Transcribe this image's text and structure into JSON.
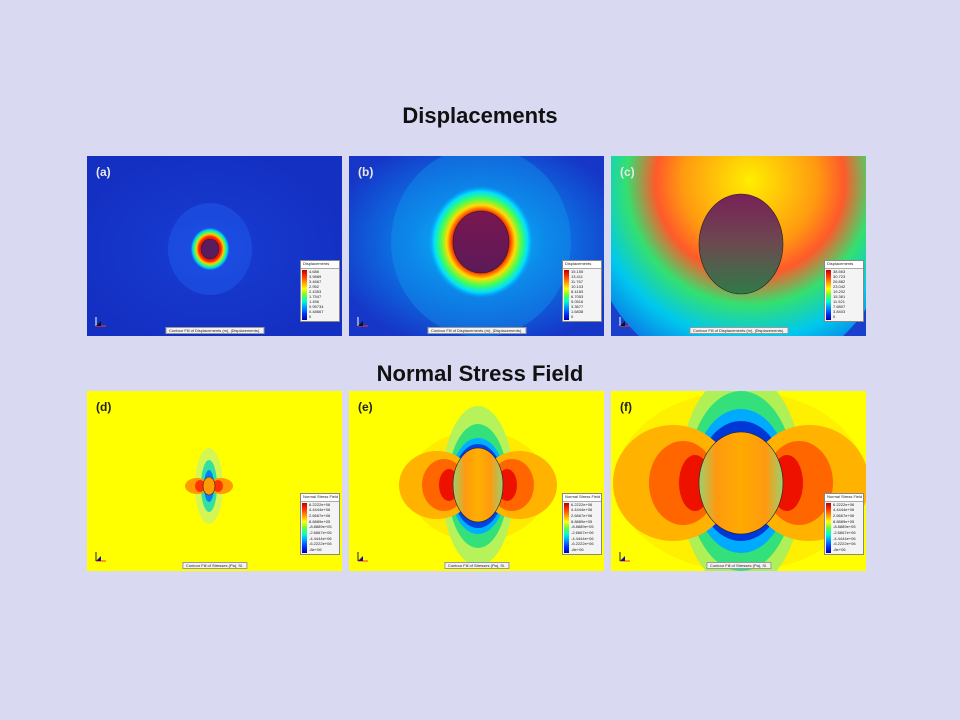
{
  "headings": {
    "top": "Displacements",
    "bottom": "Normal Stress Field"
  },
  "panels": {
    "a": {
      "label": "(a)",
      "legend_title": "Displacements",
      "caption": "Contour Fill of Displacements (m), |Displacements|.",
      "values": [
        "4.686",
        "3.9889",
        "3.4667",
        "2.952",
        "2.4353",
        "1.7547",
        "1.456",
        "0.95734",
        "0.48667",
        "0"
      ]
    },
    "b": {
      "label": "(b)",
      "legend_title": "Displacements",
      "caption": "Contour Fill of Displacements (m), |Displacements|.",
      "values": [
        "15.155",
        "13.411",
        "11.767",
        "10.103",
        "8.4183",
        "6.7053",
        "5.0516",
        "3.3677",
        "1.6838",
        "0"
      ]
    },
    "c": {
      "label": "(c)",
      "legend_title": "Displacements",
      "caption": "Contour Fill of Displacements (m), |Displacements|.",
      "values": [
        "38.563",
        "30.723",
        "26.882",
        "23.042",
        "19.202",
        "15.361",
        "11.521",
        "7.6807",
        "3.8403",
        "0"
      ]
    },
    "d": {
      "label": "(d)",
      "legend_title": "Normal Stress Field",
      "caption": "Contour Fill of Stresses (Pa), Sl.",
      "values": [
        "6.2222e+06",
        "4.4444e+06",
        "2.6667e+06",
        "8.8889e+05",
        "-8.8889e+05",
        "-2.6667e+06",
        "-4.4444e+06",
        "-6.2222e+06",
        "-8e+06"
      ]
    },
    "e": {
      "label": "(e)",
      "legend_title": "Normal Stress Field",
      "caption": "Contour Fill of Stresses (Pa), Sl.",
      "values": [
        "6.2222e+06",
        "4.4444e+06",
        "2.6667e+06",
        "8.8889e+05",
        "-8.8889e+05",
        "-2.6667e+06",
        "-4.4444e+06",
        "-6.2222e+06",
        "-8e+06"
      ]
    },
    "f": {
      "label": "(f)",
      "legend_title": "Normal Stress Field",
      "caption": "Contour Fill of Stresses (Pa), Sl.",
      "values": [
        "6.2222e+06",
        "4.4444e+06",
        "2.6667e+06",
        "8.8889e+05",
        "-8.8889e+05",
        "-2.6667e+06",
        "-4.4444e+06",
        "-6.2222e+06",
        "-8e+06"
      ]
    }
  },
  "colors": {
    "page_background": "#d9d9f2",
    "displacement_base": "#1533c9",
    "stress_base": "#ffff00"
  }
}
